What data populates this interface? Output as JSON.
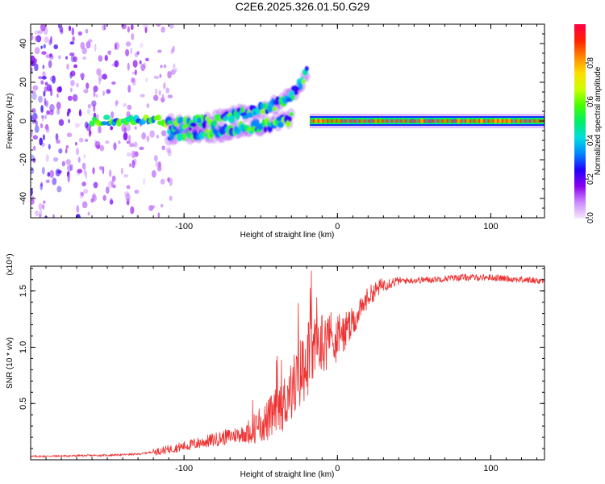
{
  "title": "C2E6.2025.326.01.50.G29",
  "chart_data": [
    {
      "type": "heatmap",
      "xlabel": "Height of straight line (km)",
      "ylabel": "Frequency (Hz)",
      "xlim": [
        -200,
        135
      ],
      "ylim": [
        -50,
        50
      ],
      "x_ticks": [
        -100,
        0,
        100
      ],
      "y_ticks": [
        -40,
        -20,
        0,
        20,
        40
      ],
      "colorbar": {
        "label": "Normalized spectral amplitude",
        "range": [
          0.0,
          1.0
        ],
        "ticks": [
          0.0,
          0.2,
          0.4,
          0.6,
          0.8
        ],
        "colors": [
          "#f4e6ff",
          "#cc88ff",
          "#8800ee",
          "#2200ff",
          "#0088ff",
          "#00dddd",
          "#00ee66",
          "#44ff00",
          "#ccff00",
          "#ffdd00",
          "#ff8800",
          "#ff2200",
          "#ff0044"
        ]
      },
      "segments": [
        {
          "name": "scattered noise",
          "x_range": [
            -200,
            -115
          ],
          "freq_range": [
            -50,
            50
          ],
          "amplitude": 0.15
        },
        {
          "name": "diverging branch upper",
          "x": [
            -110,
            -80,
            -50,
            -30,
            -20
          ],
          "freq": [
            -2,
            0,
            6,
            12,
            25
          ],
          "amplitude": 0.4
        },
        {
          "name": "diverging branch lower",
          "x": [
            -110,
            -80,
            -50,
            -30
          ],
          "freq": [
            -7,
            -6,
            -3,
            1
          ],
          "amplitude": 0.4
        },
        {
          "name": "core line",
          "x_range": [
            -160,
            -110
          ],
          "freq": 0,
          "amplitude": 0.45
        },
        {
          "name": "stable carrier",
          "x_range": [
            -18,
            135
          ],
          "freq": 0,
          "amplitude": 0.9
        }
      ]
    },
    {
      "type": "line",
      "xlabel": "Height of straight line (km)",
      "ylabel": "SNR (10 * v/v)",
      "y_multiplier": "(x10⁴)",
      "xlim": [
        -200,
        135
      ],
      "ylim": [
        0.0,
        1.72
      ],
      "x_ticks": [
        -100,
        0,
        100
      ],
      "y_ticks": [
        0.5,
        1.0,
        1.5
      ],
      "color": "#ee3333",
      "series": [
        {
          "name": "SNR",
          "x": [
            -200,
            -150,
            -130,
            -115,
            -100,
            -80,
            -60,
            -45,
            -35,
            -25,
            -18,
            -10,
            0,
            10,
            20,
            30,
            40,
            60,
            80,
            100,
            120,
            135
          ],
          "y": [
            0.03,
            0.04,
            0.05,
            0.08,
            0.12,
            0.18,
            0.24,
            0.35,
            0.5,
            0.75,
            0.95,
            1.05,
            1.08,
            1.2,
            1.45,
            1.56,
            1.59,
            1.6,
            1.62,
            1.62,
            1.6,
            1.59
          ]
        }
      ]
    }
  ]
}
